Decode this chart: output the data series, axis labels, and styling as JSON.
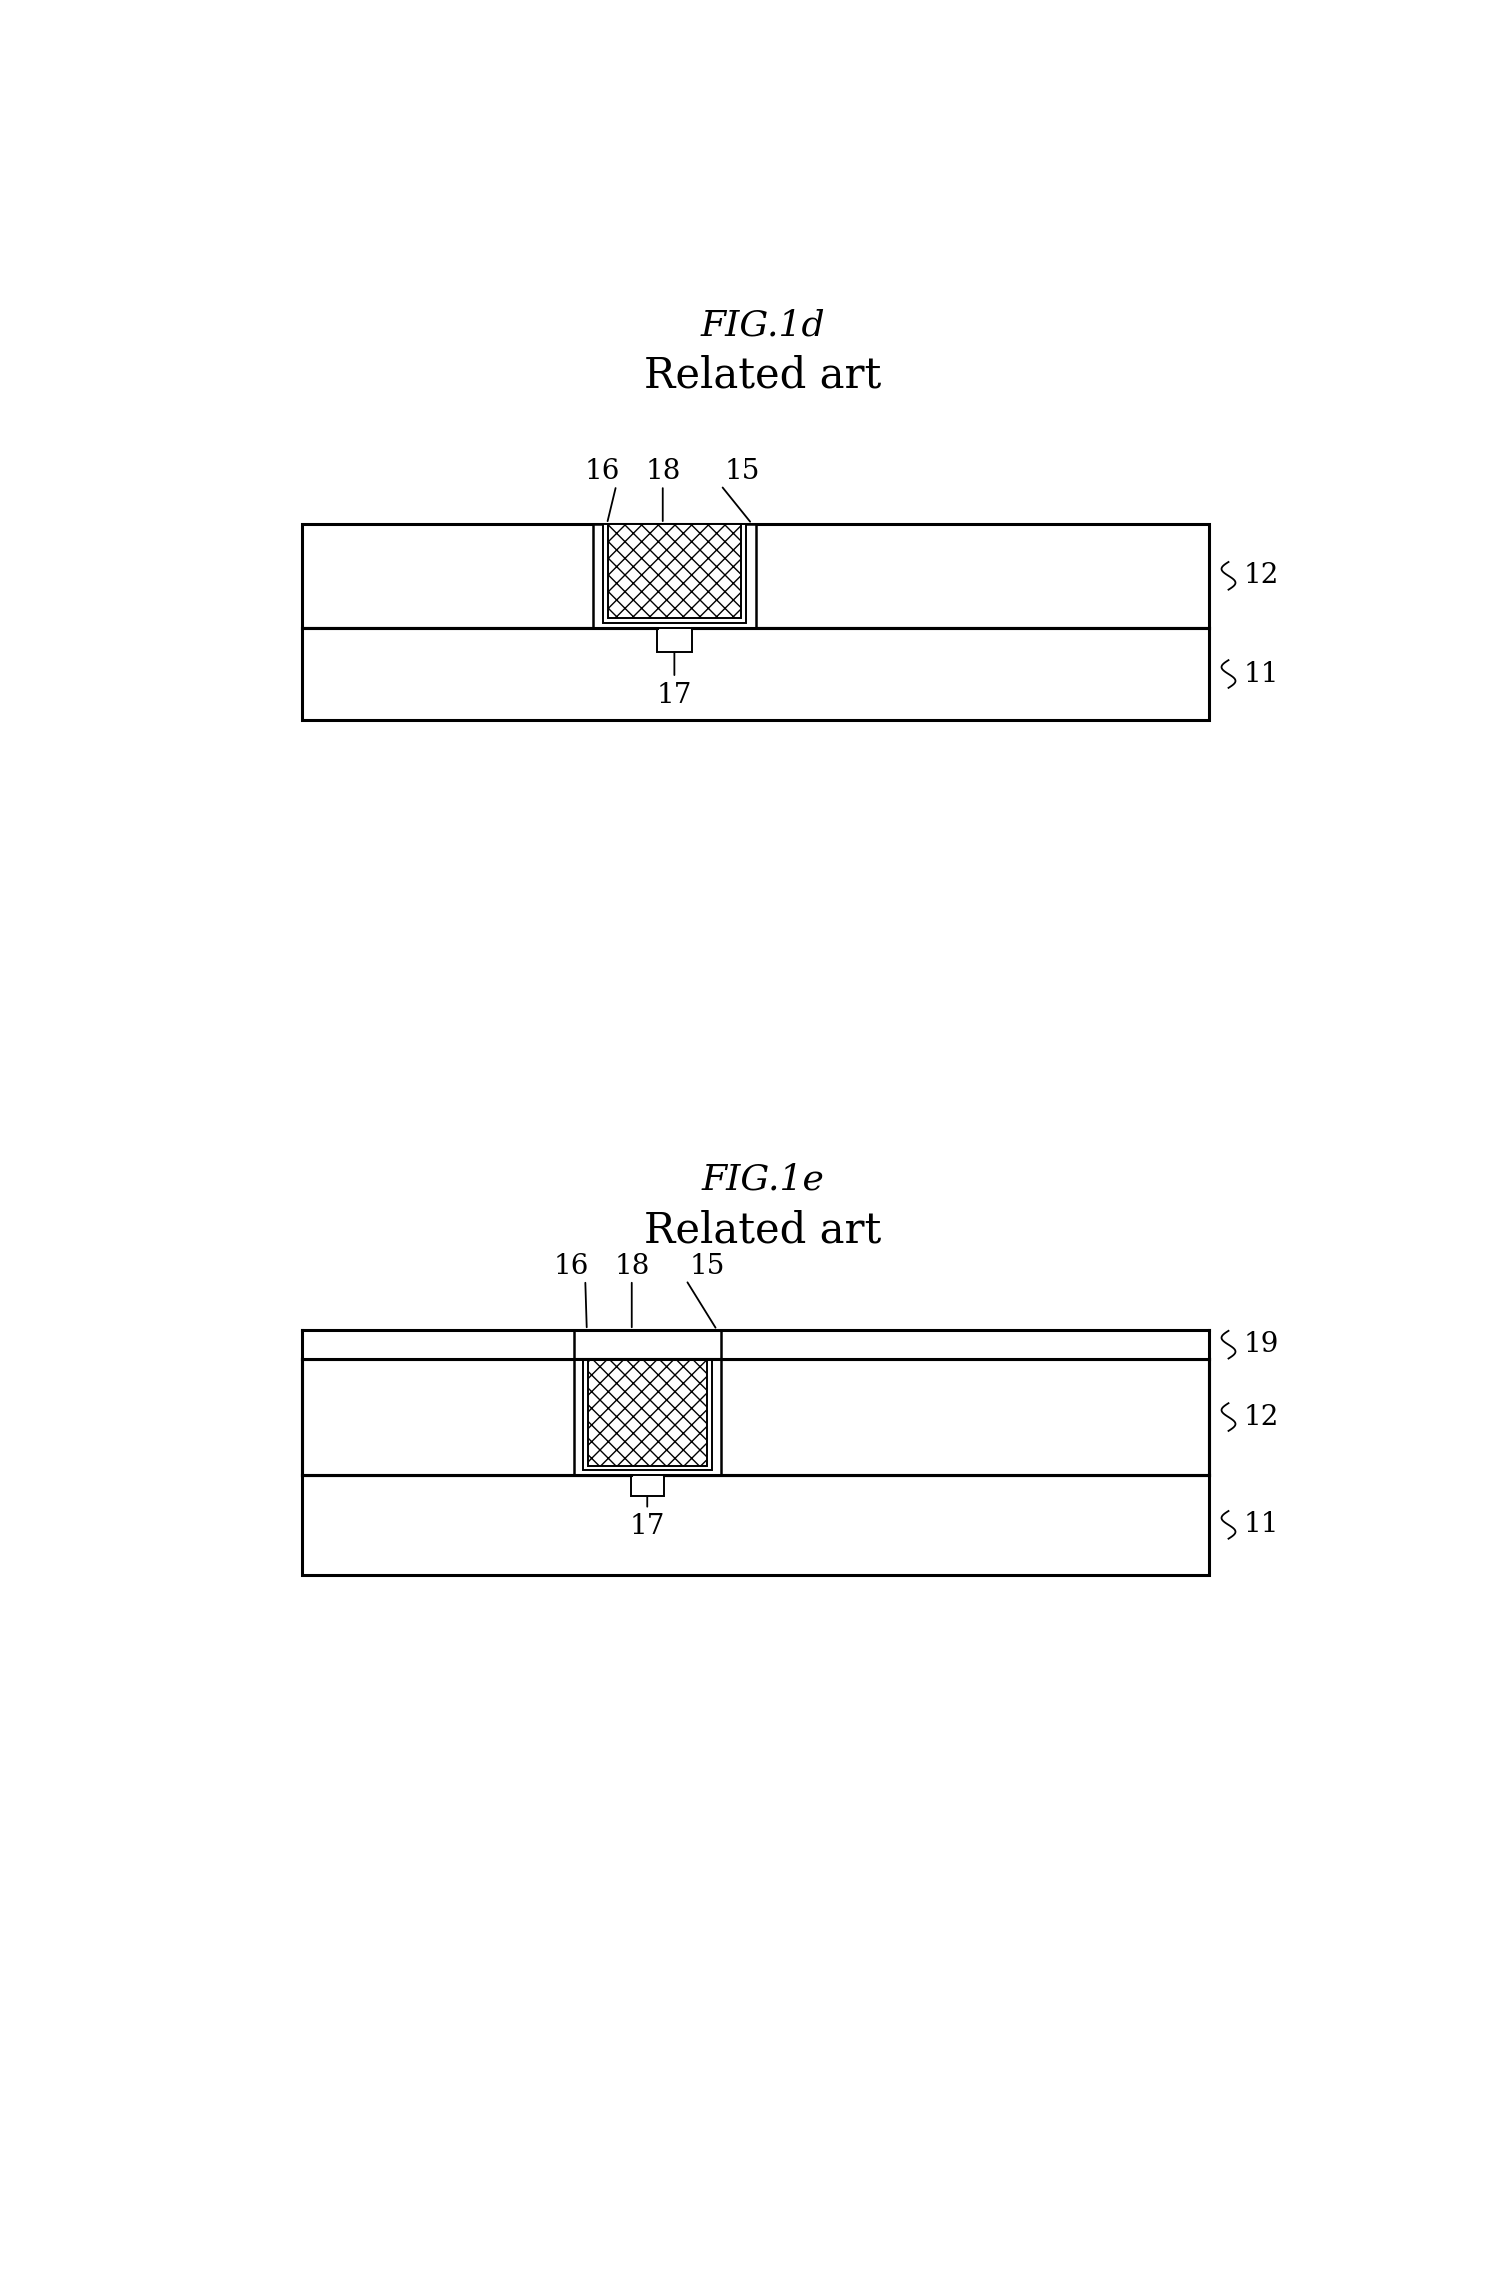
{
  "fig1d_title": "FIG.1d",
  "fig1d_subtitle": "Related art",
  "fig1e_title": "FIG.1e",
  "fig1e_subtitle": "Related art",
  "bg_color": "#ffffff",
  "line_color": "#000000",
  "font_size_title": 26,
  "font_size_subtitle": 30,
  "font_size_label": 20
}
